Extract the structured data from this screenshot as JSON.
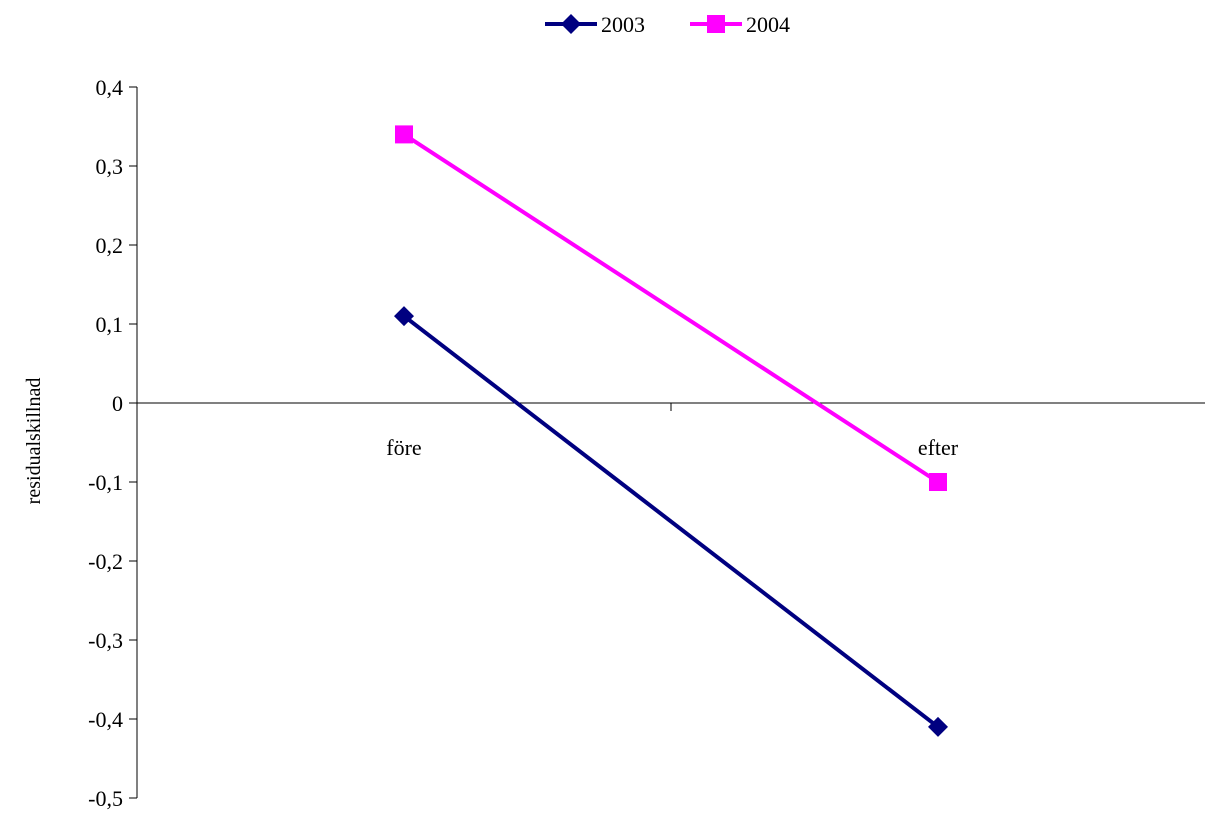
{
  "chart_data": {
    "type": "line",
    "categories": [
      "före",
      "efter"
    ],
    "series": [
      {
        "name": "2003",
        "values": [
          0.11,
          -0.41
        ],
        "color": "#000080",
        "marker": "diamond"
      },
      {
        "name": "2004",
        "values": [
          0.34,
          -0.1
        ],
        "color": "#ff00ff",
        "marker": "square"
      }
    ],
    "ylabel": "residualskillnad",
    "ylim": [
      -0.5,
      0.4
    ],
    "yticks": [
      "0,4",
      "0,3",
      "0,2",
      "0,1",
      "0",
      "-0,1",
      "-0,2",
      "-0,3",
      "-0,4",
      "-0,5"
    ],
    "ytick_values": [
      0.4,
      0.3,
      0.2,
      0.1,
      0,
      -0.1,
      -0.2,
      -0.3,
      -0.4,
      -0.5
    ],
    "grid": false,
    "legend_position": "top-center"
  }
}
